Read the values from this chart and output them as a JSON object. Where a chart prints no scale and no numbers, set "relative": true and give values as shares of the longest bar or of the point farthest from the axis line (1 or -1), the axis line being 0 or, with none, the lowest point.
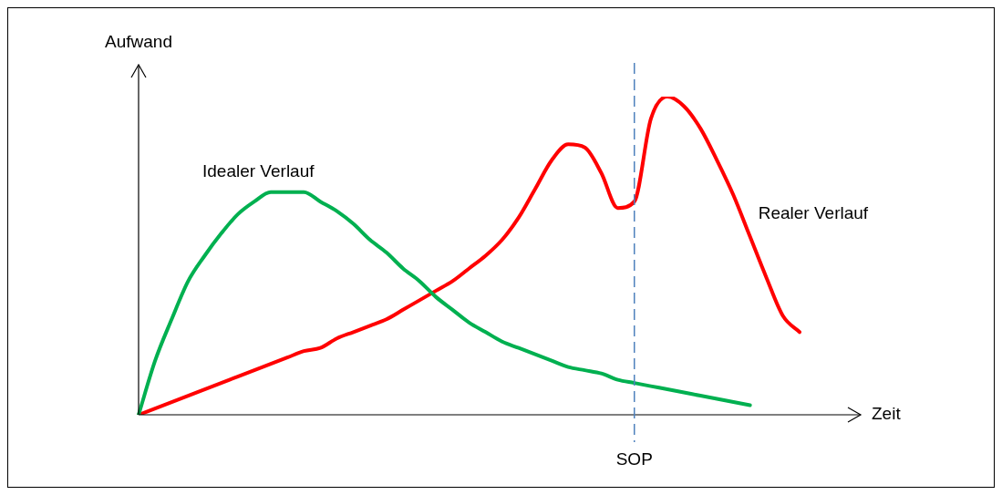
{
  "chart_data": {
    "type": "line",
    "relative": true,
    "xlabel": "Zeit",
    "ylabel": "Aufwand",
    "legend": false,
    "marker": "none",
    "line_style": "solid",
    "categories": [
      null,
      null,
      null,
      null,
      null,
      null,
      null,
      null,
      null,
      null,
      null,
      null,
      null,
      null,
      null,
      null,
      null,
      null,
      null,
      null,
      null,
      null,
      null,
      null,
      null,
      null,
      null,
      null,
      null,
      null,
      null,
      null,
      null,
      null,
      null,
      null,
      null,
      null,
      null,
      null,
      null
    ],
    "series": [
      {
        "name": "Idealer Verlauf",
        "color": "#00b050",
        "values": [
          0,
          0.17,
          0.3,
          0.42,
          0.5,
          0.57,
          0.63,
          0.67,
          0.7,
          0.7,
          0.7,
          0.67,
          0.64,
          0.6,
          0.55,
          0.51,
          0.46,
          0.42,
          0.37,
          0.33,
          0.29,
          0.26,
          0.23,
          0.21,
          0.19,
          0.17,
          0.15,
          0.14,
          0.13,
          0.11,
          0.1,
          0.09,
          0.08,
          0.07,
          0.06,
          0.05,
          0.04,
          0.03,
          null,
          null,
          null
        ]
      },
      {
        "name": "Realer Verlauf",
        "color": "#ff0000",
        "values": [
          0,
          0.02,
          0.04,
          0.06,
          0.08,
          0.1,
          0.12,
          0.14,
          0.16,
          0.18,
          0.2,
          0.21,
          0.24,
          0.26,
          0.28,
          0.3,
          0.33,
          0.36,
          0.39,
          0.42,
          0.46,
          0.5,
          0.55,
          0.62,
          0.71,
          0.8,
          0.85,
          0.84,
          0.76,
          0.65,
          0.67,
          0.93,
          1.0,
          0.97,
          0.9,
          0.8,
          0.69,
          0.56,
          0.43,
          0.31,
          0.26
        ]
      }
    ],
    "annotations": [
      "SOP"
    ]
  }
}
